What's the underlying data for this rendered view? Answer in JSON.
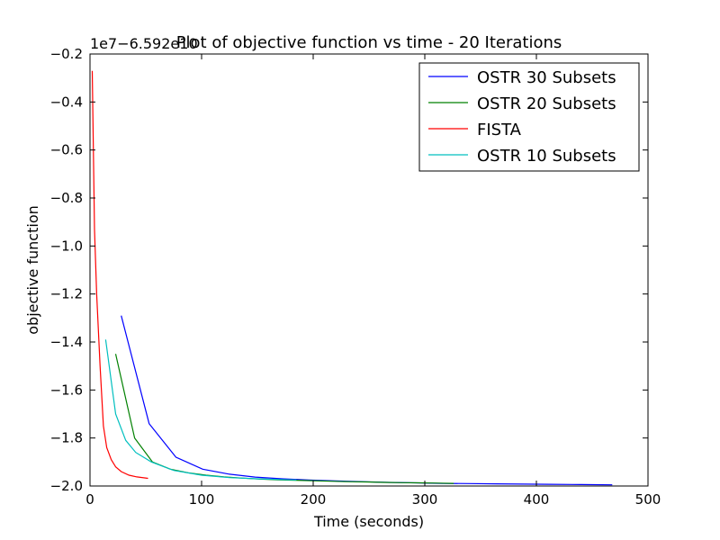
{
  "chart_data": {
    "type": "line",
    "title": "Plot of objective function vs time - 20 Iterations",
    "xlabel": "Time (seconds)",
    "ylabel": "objective function",
    "offset_text": "1e7−6.592e10",
    "xlim": [
      0,
      500
    ],
    "ylim": [
      -2.0,
      -0.2
    ],
    "x_ticks": [
      "0",
      "100",
      "200",
      "300",
      "400",
      "500"
    ],
    "y_ticks": [
      "−2.0",
      "−1.8",
      "−1.6",
      "−1.4",
      "−1.2",
      "−1.0",
      "−0.8",
      "−0.6",
      "−0.4",
      "−0.2"
    ],
    "grid": false,
    "legend_position": "top-right",
    "series": [
      {
        "name": "OSTR 30 Subsets",
        "color": "#0000ff",
        "points": [
          [
            28,
            -1.29
          ],
          [
            53,
            -1.74
          ],
          [
            77,
            -1.88
          ],
          [
            101,
            -1.93
          ],
          [
            124,
            -1.95
          ],
          [
            148,
            -1.963
          ],
          [
            172,
            -1.97
          ],
          [
            196,
            -1.975
          ],
          [
            220,
            -1.979
          ],
          [
            244,
            -1.982
          ],
          [
            268,
            -1.985
          ],
          [
            292,
            -1.987
          ],
          [
            316,
            -1.989
          ],
          [
            340,
            -1.99
          ],
          [
            364,
            -1.991
          ],
          [
            388,
            -1.992
          ],
          [
            412,
            -1.993
          ],
          [
            440,
            -1.994
          ],
          [
            468,
            -1.995
          ]
        ]
      },
      {
        "name": "OSTR 20 Subsets",
        "color": "#008000",
        "points": [
          [
            23,
            -1.45
          ],
          [
            40,
            -1.8
          ],
          [
            56,
            -1.9
          ],
          [
            72,
            -1.93
          ],
          [
            88,
            -1.945
          ],
          [
            104,
            -1.955
          ],
          [
            120,
            -1.962
          ],
          [
            136,
            -1.967
          ],
          [
            152,
            -1.971
          ],
          [
            168,
            -1.974
          ],
          [
            184,
            -1.976
          ],
          [
            200,
            -1.978
          ],
          [
            216,
            -1.98
          ],
          [
            232,
            -1.982
          ],
          [
            248,
            -1.983
          ],
          [
            264,
            -1.985
          ],
          [
            280,
            -1.986
          ],
          [
            296,
            -1.987
          ],
          [
            312,
            -1.988
          ],
          [
            326,
            -1.989
          ]
        ]
      },
      {
        "name": "FISTA",
        "color": "#ff0000",
        "points": [
          [
            2,
            -0.27
          ],
          [
            4,
            -0.93
          ],
          [
            6,
            -1.2
          ],
          [
            9,
            -1.5
          ],
          [
            12,
            -1.75
          ],
          [
            15,
            -1.84
          ],
          [
            19,
            -1.89
          ],
          [
            23,
            -1.92
          ],
          [
            28,
            -1.94
          ],
          [
            35,
            -1.955
          ],
          [
            42,
            -1.962
          ],
          [
            52,
            -1.968
          ]
        ]
      },
      {
        "name": "OSTR 10 Subsets",
        "color": "#00bfbf",
        "points": [
          [
            14,
            -1.39
          ],
          [
            23,
            -1.7
          ],
          [
            32,
            -1.81
          ],
          [
            41,
            -1.86
          ],
          [
            55,
            -1.9
          ],
          [
            75,
            -1.935
          ],
          [
            100,
            -1.955
          ],
          [
            125,
            -1.965
          ],
          [
            150,
            -1.97
          ],
          [
            170,
            -1.973
          ],
          [
            185,
            -1.975
          ]
        ]
      }
    ]
  }
}
